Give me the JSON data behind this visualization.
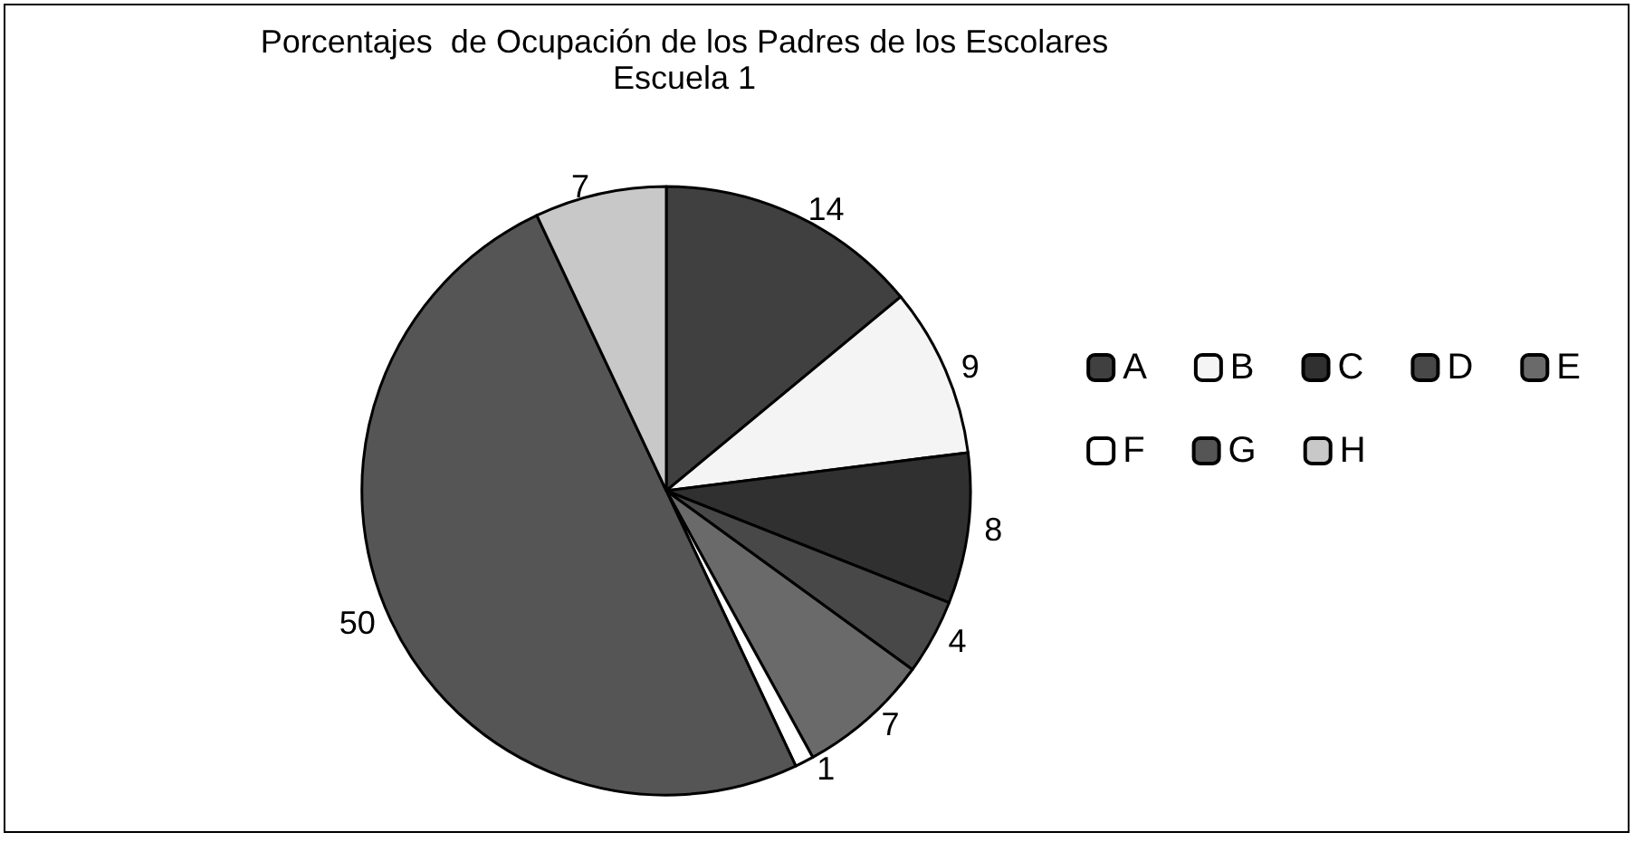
{
  "chart_data": {
    "type": "pie",
    "title": "Porcentajes  de Ocupación de los Padres de los Escolares",
    "subtitle": "Escuela 1",
    "categories": [
      "A",
      "B",
      "C",
      "D",
      "E",
      "F",
      "G",
      "H"
    ],
    "values": [
      14,
      9,
      8,
      4,
      7,
      1,
      50,
      7
    ],
    "colors": [
      "#404040",
      "#f4f4f4",
      "#303030",
      "#484848",
      "#6a6a6a",
      "#ffffff",
      "#555555",
      "#c8c8c8"
    ],
    "data_labels": true,
    "legend": "right"
  }
}
